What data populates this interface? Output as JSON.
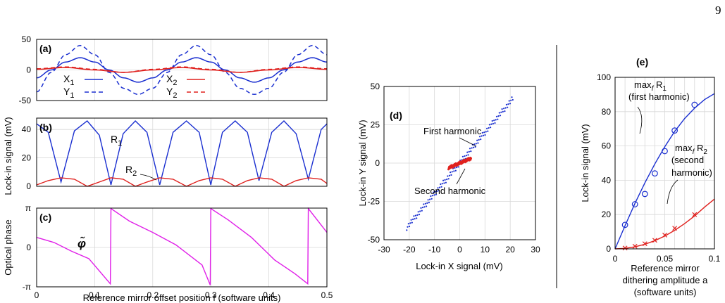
{
  "page": {
    "number": "9"
  },
  "colors": {
    "blue": "#1a2fd0",
    "red": "#e0201d",
    "magenta": "#e020e8",
    "grid": "#d8d8d8",
    "axis": "#000000"
  },
  "chart_data": [
    {
      "id": "a",
      "panel_label": "(a)",
      "type": "line",
      "x_range": [
        0,
        0.5
      ],
      "ylim": [
        -50,
        50
      ],
      "yticks": [
        -50,
        0,
        50
      ],
      "grid": true,
      "series": [
        {
          "name": "X1",
          "label_main": "X",
          "label_sub": "1",
          "style": "solid",
          "color": "blue",
          "x": [
            0,
            0.025,
            0.05,
            0.075,
            0.1,
            0.125,
            0.15,
            0.175,
            0.2,
            0.225,
            0.25,
            0.275,
            0.3,
            0.325,
            0.35,
            0.375,
            0.4,
            0.425,
            0.45,
            0.475,
            0.5
          ],
          "values": [
            -13,
            0,
            13,
            20,
            13,
            0,
            -13,
            -20,
            -13,
            0,
            13,
            20,
            13,
            0,
            -13,
            -20,
            -13,
            0,
            13,
            20,
            13
          ]
        },
        {
          "name": "Y1",
          "label_main": "Y",
          "label_sub": "1",
          "style": "dashed",
          "color": "blue",
          "x": [
            0,
            0.025,
            0.05,
            0.075,
            0.1,
            0.125,
            0.15,
            0.175,
            0.2,
            0.225,
            0.25,
            0.275,
            0.3,
            0.325,
            0.35,
            0.375,
            0.4,
            0.425,
            0.45,
            0.475,
            0.5
          ],
          "values": [
            -36,
            -4,
            25,
            40,
            25,
            -4,
            -30,
            -40,
            -30,
            -4,
            25,
            40,
            25,
            -4,
            -30,
            -40,
            -30,
            -4,
            25,
            40,
            25
          ]
        },
        {
          "name": "X2",
          "label_main": "X",
          "label_sub": "2",
          "style": "solid",
          "color": "red",
          "x": [
            0,
            0.05,
            0.1,
            0.15,
            0.2,
            0.25,
            0.3,
            0.35,
            0.4,
            0.45,
            0.5
          ],
          "values": [
            1,
            4,
            0,
            -4,
            0,
            4,
            0,
            -4,
            0,
            4,
            1
          ]
        },
        {
          "name": "Y2",
          "label_main": "Y",
          "label_sub": "2",
          "style": "dashed",
          "color": "red",
          "x": [
            0,
            0.05,
            0.1,
            0.15,
            0.2,
            0.25,
            0.3,
            0.35,
            0.4,
            0.45,
            0.5
          ],
          "values": [
            2,
            5,
            1,
            -4,
            1,
            5,
            1,
            -4,
            1,
            5,
            2
          ]
        }
      ]
    },
    {
      "id": "b",
      "panel_label": "(b)",
      "type": "line",
      "x_range": [
        0,
        0.5
      ],
      "ylim": [
        0,
        48
      ],
      "yticks": [
        0,
        20,
        40
      ],
      "grid": true,
      "series": [
        {
          "name": "R1",
          "label_main": "R",
          "label_sub": "1",
          "color": "blue",
          "x": [
            0,
            0.02,
            0.042,
            0.065,
            0.087,
            0.108,
            0.128,
            0.149,
            0.17,
            0.19,
            0.212,
            0.235,
            0.258,
            0.28,
            0.3,
            0.32,
            0.342,
            0.363,
            0.383,
            0.405,
            0.426,
            0.447,
            0.468,
            0.49,
            0.5
          ],
          "values": [
            44,
            38,
            3,
            39,
            46,
            36,
            1,
            37,
            46,
            38,
            1,
            38,
            46,
            38,
            1,
            38,
            46,
            38,
            4,
            38,
            46,
            37,
            5,
            40,
            44
          ]
        },
        {
          "name": "R2",
          "label_main": "R",
          "label_sub": "2",
          "color": "red",
          "x": [
            0,
            0.02,
            0.042,
            0.065,
            0.087,
            0.108,
            0.128,
            0.149,
            0.17,
            0.19,
            0.212,
            0.235,
            0.258,
            0.28,
            0.3,
            0.32,
            0.342,
            0.363,
            0.383,
            0.405,
            0.426,
            0.447,
            0.468,
            0.49,
            0.5
          ],
          "values": [
            1,
            4,
            6,
            5,
            0,
            3,
            6,
            5,
            0,
            3,
            6,
            5,
            0,
            4,
            6,
            5,
            0,
            4,
            6,
            5,
            0,
            4,
            6,
            5,
            2
          ]
        }
      ]
    },
    {
      "id": "c",
      "panel_label": "(c)",
      "type": "line",
      "x_range": [
        0,
        0.5
      ],
      "ylim": [
        -3.14159,
        3.14159
      ],
      "ytick_labels": [
        "-π",
        "0",
        "π"
      ],
      "xticks": [
        0,
        0.1,
        0.2,
        0.3,
        0.4,
        0.5
      ],
      "xlabel": "Reference mirror offset position f (software units)",
      "grid": true,
      "annotation": "φ̃",
      "series": [
        {
          "name": "optical phase",
          "color": "magenta",
          "x": [
            0,
            0.03,
            0.06,
            0.09,
            0.127,
            0.128,
            0.16,
            0.2,
            0.24,
            0.285,
            0.299,
            0.3,
            0.33,
            0.37,
            0.41,
            0.445,
            0.467,
            0.468,
            0.5
          ],
          "values": [
            0.8,
            0.4,
            -0.3,
            -0.9,
            -2.9,
            3.1,
            2.1,
            1.2,
            0.2,
            -1.4,
            -3.0,
            3.1,
            2.2,
            0.8,
            -1.0,
            -2.1,
            -2.9,
            3.1,
            1.2
          ]
        }
      ]
    },
    {
      "id": "d",
      "panel_label": "(d)",
      "type": "scatter",
      "xlim": [
        -30,
        30
      ],
      "ylim": [
        -50,
        50
      ],
      "xticks": [
        -30,
        -20,
        -10,
        0,
        10,
        20,
        30
      ],
      "yticks": [
        -50,
        -25,
        0,
        25,
        50
      ],
      "xlabel": "Lock-in X signal (mV)",
      "ylabel": "Lock-in Y signal (mV)",
      "grid": true,
      "annotations": [
        "First harmonic",
        "Second harmonic"
      ],
      "series": [
        {
          "name": "first harmonic",
          "color": "blue",
          "x_range": [
            -21,
            21
          ],
          "slope": 2.0
        },
        {
          "name": "second harmonic",
          "color": "red",
          "x_range": [
            -4.5,
            4.5
          ],
          "slope": 0.7
        }
      ]
    },
    {
      "id": "e",
      "panel_label": "(e)",
      "type": "scatter",
      "xlim": [
        0,
        0.1
      ],
      "ylim": [
        0,
        100
      ],
      "xticks": [
        0,
        0.05,
        0.1
      ],
      "xtick_labels": [
        "0",
        "0.05",
        "0.1"
      ],
      "yticks": [
        0,
        20,
        40,
        60,
        80,
        100
      ],
      "xlabel": [
        "Reference mirror",
        "dithering amplitude a",
        "(software units)"
      ],
      "ylabel": "Lock-in signal (mV)",
      "grid": true,
      "annotations": [
        [
          "max",
          "f",
          "R",
          "1",
          "(first harmonic)"
        ],
        [
          "max",
          "f",
          "R",
          "2",
          "(second",
          "harmonic)"
        ]
      ],
      "series": [
        {
          "name": "maxf R1 data",
          "marker": "circle",
          "color": "blue",
          "x": [
            0.01,
            0.02,
            0.03,
            0.04,
            0.05,
            0.06,
            0.08
          ],
          "values": [
            14,
            26,
            32,
            44,
            57,
            69,
            84
          ]
        },
        {
          "name": "maxf R1 fit",
          "style": "solid",
          "color": "blue",
          "x": [
            0,
            0.01,
            0.02,
            0.03,
            0.04,
            0.05,
            0.06,
            0.07,
            0.08,
            0.09,
            0.1
          ],
          "values": [
            0,
            13.5,
            26.5,
            38.5,
            49.5,
            59.5,
            68.5,
            76,
            82,
            87,
            90.5
          ]
        },
        {
          "name": "maxf R2 data",
          "marker": "cross",
          "color": "red",
          "x": [
            0.01,
            0.02,
            0.03,
            0.04,
            0.05,
            0.06,
            0.08
          ],
          "values": [
            0.5,
            1.5,
            3,
            5,
            8,
            12,
            20
          ]
        },
        {
          "name": "maxf R2 fit",
          "style": "solid",
          "color": "red",
          "x": [
            0,
            0.01,
            0.02,
            0.03,
            0.04,
            0.05,
            0.06,
            0.07,
            0.08,
            0.09,
            0.1
          ],
          "values": [
            0,
            0.3,
            1.2,
            2.7,
            4.8,
            7.5,
            10.8,
            14.7,
            19.2,
            24.3,
            29
          ]
        }
      ]
    }
  ],
  "shared": {
    "ylabel_abc": "Lock-in signal (mV)",
    "ylabel_c": "Optical phase"
  }
}
